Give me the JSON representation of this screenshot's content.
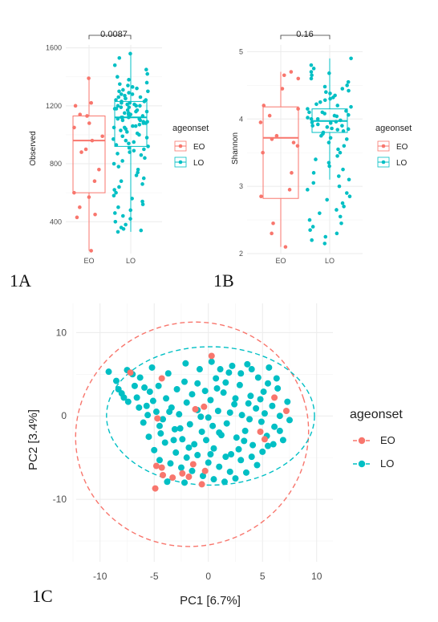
{
  "colors": {
    "EO": "#F8766D",
    "LO": "#00BFC4"
  },
  "chart_data": [
    {
      "id": "1A",
      "panel_label": "1A",
      "type": "boxplot",
      "ylabel": "Observed",
      "xlabel": "",
      "categories": [
        "EO",
        "LO"
      ],
      "ylim": [
        180,
        1620
      ],
      "yticks": [
        400,
        800,
        1200,
        1600
      ],
      "pvalue_label": "0.0087",
      "legend": {
        "title": "ageonset",
        "items": [
          "EO",
          "LO"
        ],
        "placement": "right"
      },
      "boxes": [
        {
          "group": "EO",
          "whisker_low": 200,
          "q1": 600,
          "median": 960,
          "q3": 1130,
          "whisker_high": 1390
        },
        {
          "group": "LO",
          "whisker_low": 330,
          "q1": 920,
          "median": 1120,
          "q3": 1230,
          "whisker_high": 1560
        }
      ],
      "points": {
        "EO": [
          1390,
          1220,
          1200,
          1140,
          1130,
          1080,
          1050,
          990,
          960,
          900,
          880,
          760,
          680,
          600,
          570,
          500,
          450,
          430,
          200
        ],
        "LO": [
          1560,
          1530,
          1480,
          1450,
          1420,
          1400,
          1380,
          1360,
          1350,
          1340,
          1330,
          1320,
          1310,
          1300,
          1300,
          1290,
          1280,
          1280,
          1270,
          1260,
          1260,
          1250,
          1250,
          1240,
          1240,
          1230,
          1230,
          1220,
          1220,
          1210,
          1210,
          1200,
          1200,
          1200,
          1190,
          1190,
          1180,
          1180,
          1170,
          1170,
          1160,
          1160,
          1150,
          1150,
          1140,
          1140,
          1130,
          1130,
          1120,
          1120,
          1120,
          1110,
          1110,
          1100,
          1100,
          1090,
          1090,
          1080,
          1080,
          1070,
          1060,
          1060,
          1050,
          1050,
          1040,
          1030,
          1020,
          1010,
          1000,
          990,
          980,
          970,
          960,
          950,
          940,
          930,
          920,
          910,
          900,
          890,
          880,
          870,
          860,
          840,
          820,
          800,
          780,
          760,
          740,
          720,
          700,
          680,
          660,
          640,
          620,
          600,
          580,
          560,
          540,
          520,
          500,
          480,
          460,
          440,
          420,
          400,
          380,
          360,
          350,
          340,
          330
        ]
      }
    },
    {
      "id": "1B",
      "panel_label": "1B",
      "type": "boxplot",
      "ylabel": "Shannon",
      "xlabel": "",
      "categories": [
        "EO",
        "LO"
      ],
      "ylim": [
        2.0,
        5.1
      ],
      "yticks": [
        2,
        3,
        4,
        5
      ],
      "pvalue_label": "0.16",
      "legend": {
        "title": "ageonset",
        "items": [
          "EO",
          "LO"
        ],
        "placement": "right"
      },
      "boxes": [
        {
          "group": "EO",
          "whisker_low": 2.1,
          "q1": 2.82,
          "median": 3.72,
          "q3": 4.18,
          "whisker_high": 4.7
        },
        {
          "group": "LO",
          "whisker_low": 3.1,
          "q1": 3.8,
          "median": 3.97,
          "q3": 4.15,
          "whisker_high": 4.9
        }
      ],
      "points": {
        "EO": [
          4.7,
          4.65,
          4.6,
          4.45,
          4.2,
          4.15,
          4.05,
          3.95,
          3.75,
          3.7,
          3.65,
          3.6,
          3.5,
          3.2,
          2.95,
          2.85,
          2.45,
          2.3,
          2.1
        ],
        "LO": [
          4.9,
          4.8,
          4.75,
          4.7,
          4.68,
          4.65,
          4.6,
          4.55,
          4.5,
          4.48,
          4.45,
          4.42,
          4.4,
          4.38,
          4.35,
          4.32,
          4.3,
          4.28,
          4.25,
          4.22,
          4.2,
          4.18,
          4.15,
          4.12,
          4.1,
          4.1,
          4.08,
          4.06,
          4.05,
          4.04,
          4.02,
          4.0,
          4.0,
          3.98,
          3.96,
          3.95,
          3.94,
          3.92,
          3.9,
          3.9,
          3.88,
          3.86,
          3.85,
          3.84,
          3.82,
          3.8,
          3.78,
          3.75,
          3.72,
          3.7,
          3.65,
          3.6,
          3.55,
          3.5,
          3.45,
          3.4,
          3.35,
          3.3,
          3.25,
          3.2,
          3.15,
          3.1,
          3.05,
          3.0,
          2.95,
          2.9,
          2.85,
          2.8,
          2.75,
          2.7,
          2.65,
          2.6,
          2.55,
          2.5,
          2.45,
          2.4,
          2.35,
          2.3,
          2.25,
          2.2,
          2.15
        ]
      }
    },
    {
      "id": "1C",
      "panel_label": "1C",
      "type": "scatter",
      "xlabel": "PC1   [6.7%]",
      "ylabel": "PC2   [3.4%]",
      "xlim": [
        -12.2,
        11.5
      ],
      "ylim": [
        -17.5,
        13.5
      ],
      "xticks": [
        -10,
        -5,
        0,
        5,
        10
      ],
      "yticks": [
        -10,
        0,
        10
      ],
      "legend": {
        "title": "ageonset",
        "items": [
          "EO",
          "LO"
        ],
        "placement": "right"
      },
      "ellipses": [
        {
          "group": "EO",
          "cx": -1.5,
          "cy": -2.2,
          "rx": 10.8,
          "ry": 13.4,
          "angle": -18
        },
        {
          "group": "LO",
          "cx": 0.2,
          "cy": 0.0,
          "rx": 9.6,
          "ry": 8.3,
          "angle": 0
        }
      ],
      "series": [
        {
          "name": "EO",
          "points": [
            [
              -4.3,
              4.5
            ],
            [
              -1.2,
              0.8
            ],
            [
              0.3,
              7.2
            ],
            [
              -7.2,
              5.2
            ],
            [
              -4.8,
              -6.0
            ],
            [
              -4.7,
              -0.3
            ],
            [
              -4.2,
              -7.1
            ],
            [
              -3.3,
              -7.4
            ],
            [
              -2.4,
              -6.9
            ],
            [
              -1.8,
              -7.3
            ],
            [
              -0.6,
              -8.2
            ],
            [
              -4.9,
              -8.7
            ],
            [
              -4.3,
              -6.2
            ],
            [
              -1.4,
              -5.8
            ],
            [
              -0.3,
              -6.6
            ],
            [
              6.1,
              2.2
            ],
            [
              4.8,
              -1.9
            ],
            [
              5.2,
              -2.8
            ],
            [
              7.2,
              0.6
            ],
            [
              -0.4,
              1.1
            ]
          ]
        },
        {
          "name": "LO",
          "points": [
            [
              -9.2,
              5.3
            ],
            [
              -8.5,
              4.2
            ],
            [
              -8.0,
              2.7
            ],
            [
              -7.5,
              5.5
            ],
            [
              -7.0,
              5.0
            ],
            [
              -6.6,
              2.2
            ],
            [
              -6.3,
              4.6
            ],
            [
              -5.9,
              3.4
            ],
            [
              -5.7,
              1.2
            ],
            [
              -5.4,
              2.9
            ],
            [
              -5.1,
              1.8
            ],
            [
              -4.8,
              0.5
            ],
            [
              -4.6,
              3.6
            ],
            [
              -4.2,
              -0.4
            ],
            [
              -3.9,
              2.1
            ],
            [
              -3.7,
              5.1
            ],
            [
              -3.4,
              1.0
            ],
            [
              -3.1,
              -1.6
            ],
            [
              -2.9,
              3.2
            ],
            [
              -2.7,
              0.2
            ],
            [
              -2.4,
              -2.8
            ],
            [
              -2.2,
              4.1
            ],
            [
              -2.0,
              1.6
            ],
            [
              -1.7,
              -1.0
            ],
            [
              -1.5,
              2.6
            ],
            [
              -1.3,
              -3.4
            ],
            [
              -1.0,
              0.7
            ],
            [
              -0.8,
              5.6
            ],
            [
              -0.6,
              -1.9
            ],
            [
              -0.3,
              3.0
            ],
            [
              0.0,
              -0.2
            ],
            [
              0.2,
              1.9
            ],
            [
              0.5,
              -3.9
            ],
            [
              0.7,
              4.5
            ],
            [
              0.9,
              0.6
            ],
            [
              1.2,
              -2.3
            ],
            [
              1.4,
              2.8
            ],
            [
              1.7,
              -0.9
            ],
            [
              1.9,
              5.2
            ],
            [
              2.1,
              -4.6
            ],
            [
              2.4,
              1.4
            ],
            [
              2.6,
              -2.6
            ],
            [
              2.9,
              3.7
            ],
            [
              3.1,
              0.1
            ],
            [
              3.4,
              -1.8
            ],
            [
              3.6,
              6.2
            ],
            [
              3.9,
              2.4
            ],
            [
              4.1,
              -3.5
            ],
            [
              4.4,
              0.9
            ],
            [
              4.6,
              4.6
            ],
            [
              4.9,
              -0.7
            ],
            [
              5.1,
              2.9
            ],
            [
              5.4,
              -2.4
            ],
            [
              5.6,
              5.8
            ],
            [
              5.9,
              1.2
            ],
            [
              6.1,
              -1.3
            ],
            [
              6.4,
              3.3
            ],
            [
              6.6,
              0.0
            ],
            [
              6.9,
              -2.9
            ],
            [
              7.3,
              1.7
            ],
            [
              -6.0,
              -0.8
            ],
            [
              -5.5,
              -2.5
            ],
            [
              -5.0,
              -4.1
            ],
            [
              -4.5,
              -5.3
            ],
            [
              -4.0,
              -3.2
            ],
            [
              -3.5,
              -5.7
            ],
            [
              -3.0,
              -4.4
            ],
            [
              -2.5,
              -6.2
            ],
            [
              -2.0,
              -5.0
            ],
            [
              -1.5,
              -6.6
            ],
            [
              -1.0,
              -4.7
            ],
            [
              -0.5,
              -7.2
            ],
            [
              0.0,
              -5.6
            ],
            [
              0.5,
              -7.6
            ],
            [
              1.0,
              -6.1
            ],
            [
              1.5,
              -7.9
            ],
            [
              2.0,
              -6.7
            ],
            [
              2.5,
              -7.5
            ],
            [
              3.0,
              -5.3
            ],
            [
              3.5,
              -6.8
            ],
            [
              4.0,
              -4.9
            ],
            [
              4.5,
              -5.9
            ],
            [
              5.0,
              -4.3
            ],
            [
              5.5,
              -3.6
            ],
            [
              -2.2,
              -8.0
            ],
            [
              -3.8,
              -7.9
            ],
            [
              -4.4,
              -2.1
            ],
            [
              -3.2,
              -2.9
            ],
            [
              -0.2,
              -2.9
            ],
            [
              1.0,
              -2.0
            ],
            [
              1.6,
              -4.9
            ],
            [
              2.8,
              -4.0
            ],
            [
              3.3,
              -3.0
            ],
            [
              0.2,
              -4.6
            ],
            [
              -1.8,
              -3.8
            ],
            [
              -2.6,
              -1.5
            ],
            [
              -5.2,
              5.8
            ],
            [
              -2.1,
              6.3
            ],
            [
              0.3,
              6.5
            ],
            [
              1.1,
              5.6
            ],
            [
              2.2,
              6.0
            ],
            [
              3.0,
              5.1
            ],
            [
              4.0,
              5.6
            ],
            [
              -6.8,
              3.6
            ],
            [
              -7.4,
              1.7
            ],
            [
              -8.3,
              3.2
            ],
            [
              -1.0,
              3.9
            ],
            [
              0.8,
              3.3
            ],
            [
              1.6,
              4.0
            ],
            [
              2.5,
              2.1
            ],
            [
              3.7,
              1.5
            ],
            [
              4.8,
              2.0
            ],
            [
              5.5,
              3.9
            ],
            [
              6.3,
              4.5
            ],
            [
              -0.7,
              -0.1
            ],
            [
              0.4,
              -1.2
            ],
            [
              2.0,
              0.4
            ],
            [
              3.8,
              -0.4
            ],
            [
              5.2,
              0.3
            ],
            [
              6.0,
              -3.4
            ],
            [
              6.6,
              -1.8
            ],
            [
              7.5,
              -0.5
            ],
            [
              -3.6,
              0.5
            ],
            [
              -4.5,
              -1.2
            ],
            [
              -5.6,
              0.1
            ],
            [
              -6.4,
              1.0
            ],
            [
              -7.8,
              2.2
            ]
          ]
        }
      ]
    }
  ]
}
